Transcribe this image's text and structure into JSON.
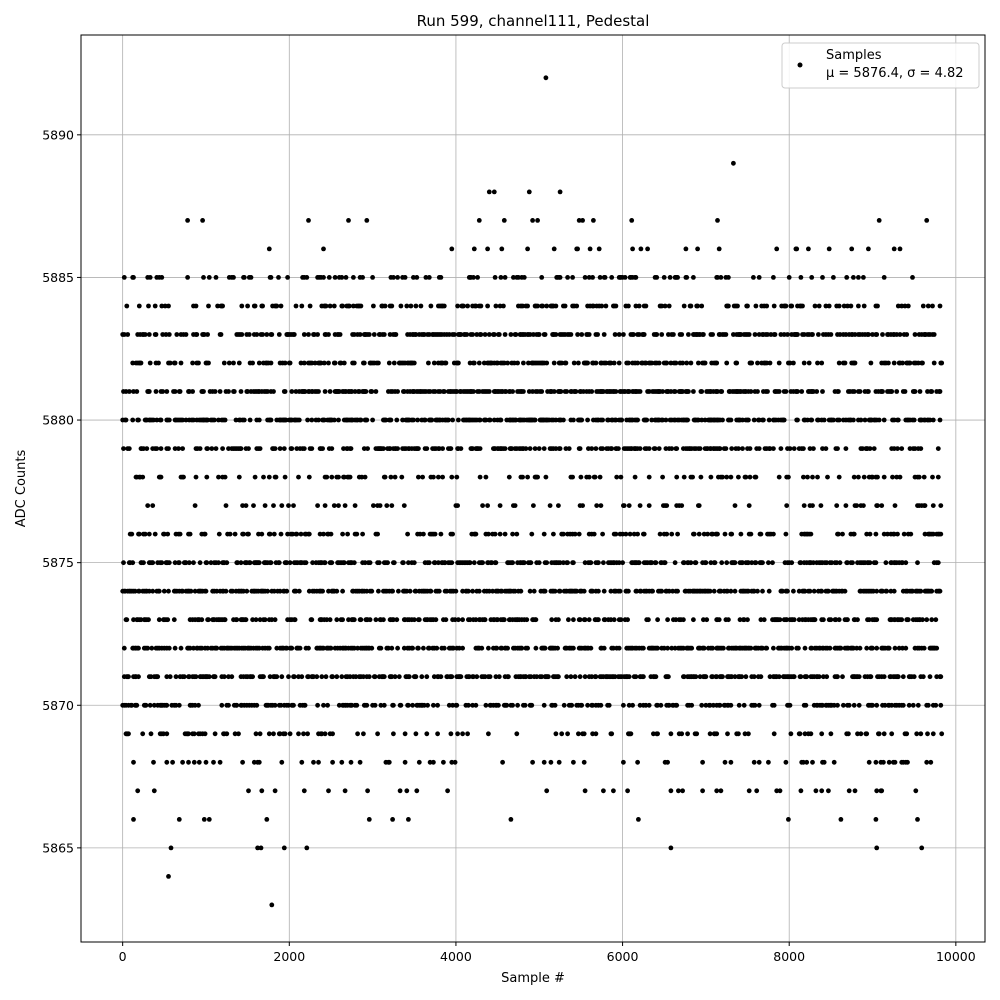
{
  "chart_data": {
    "type": "scatter",
    "title": "Run 599, channel111, Pedestal",
    "xlabel": "Sample #",
    "ylabel": "ADC Counts",
    "xlim": [
      -500,
      10350
    ],
    "ylim": [
      5861.7,
      5893.5
    ],
    "xticks": [
      0,
      2000,
      4000,
      6000,
      8000,
      10000
    ],
    "yticks": [
      5865,
      5870,
      5875,
      5880,
      5885,
      5890
    ],
    "grid": true,
    "legend": {
      "placement": "top-right",
      "entries": [
        "Samples",
        "μ = 5876.4, σ = 4.82"
      ]
    },
    "marker_color": "#000000",
    "series": [
      {
        "name": "Samples",
        "x_range": [
          0,
          9830
        ],
        "x_step": 10,
        "level_weights": {
          "5866": 0.04,
          "5867": 0.07,
          "5868": 0.12,
          "5869": 0.25,
          "5870": 0.45,
          "5871": 0.55,
          "5872": 0.62,
          "5873": 0.42,
          "5874": 0.6,
          "5875": 0.55,
          "5876": 0.3,
          "5877": 0.12,
          "5878": 0.22,
          "5879": 0.4,
          "5880": 0.62,
          "5881": 0.6,
          "5882": 0.38,
          "5883": 0.45,
          "5884": 0.3,
          "5885": 0.22,
          "5886": 0.04,
          "5887": 0.015
        },
        "outliers": [
          {
            "x": 5080,
            "y": 5892
          },
          {
            "x": 7330,
            "y": 5889
          },
          {
            "x": 1790,
            "y": 5863
          },
          {
            "x": 550,
            "y": 5864
          },
          {
            "x": 580,
            "y": 5865
          },
          {
            "x": 1620,
            "y": 5865
          },
          {
            "x": 1660,
            "y": 5865
          },
          {
            "x": 1940,
            "y": 5865
          },
          {
            "x": 2210,
            "y": 5865
          },
          {
            "x": 6580,
            "y": 5865
          },
          {
            "x": 9050,
            "y": 5865
          },
          {
            "x": 9590,
            "y": 5865
          },
          {
            "x": 4400,
            "y": 5888
          },
          {
            "x": 4460,
            "y": 5888
          },
          {
            "x": 4880,
            "y": 5888
          },
          {
            "x": 5250,
            "y": 5888
          },
          {
            "x": 780,
            "y": 5887
          },
          {
            "x": 960,
            "y": 5887
          },
          {
            "x": 4580,
            "y": 5887
          },
          {
            "x": 4920,
            "y": 5887
          },
          {
            "x": 4980,
            "y": 5887
          },
          {
            "x": 5520,
            "y": 5887
          },
          {
            "x": 5650,
            "y": 5887
          },
          {
            "x": 6110,
            "y": 5887
          }
        ]
      }
    ]
  }
}
